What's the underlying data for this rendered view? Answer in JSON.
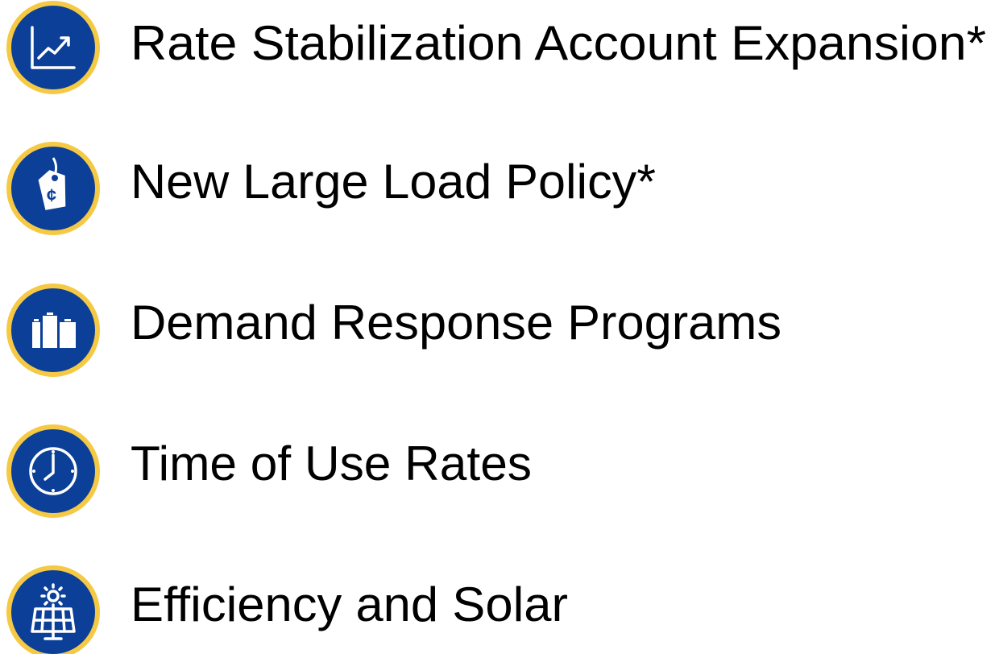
{
  "items": [
    {
      "label": "Rate Stabilization Account Expansion*"
    },
    {
      "label": "New Large Load Policy*"
    },
    {
      "label": "Demand Response Programs"
    },
    {
      "label": "Time of Use Rates"
    },
    {
      "label": "Efficiency and Solar"
    }
  ]
}
